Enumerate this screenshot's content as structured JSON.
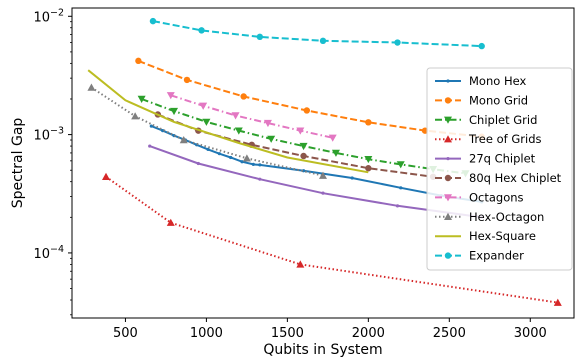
{
  "chart_data": {
    "type": "line",
    "title": "",
    "xlabel": "Qubits in System",
    "ylabel": "Spectral Gap",
    "xlim": [
      170,
      3270
    ],
    "ylim_log10": [
      -4.55,
      -1.93
    ],
    "yscale": "log",
    "x_ticks": [
      500,
      1000,
      1500,
      2000,
      2500,
      3000
    ],
    "x_tick_labels": [
      "500",
      "1000",
      "1500",
      "2000",
      "2500",
      "3000"
    ],
    "y_ticks": [
      0.0001,
      0.001,
      0.01
    ],
    "y_tick_labels": [
      {
        "base": "10",
        "exp": "−4"
      },
      {
        "base": "10",
        "exp": "−3"
      },
      {
        "base": "10",
        "exp": "−2"
      }
    ],
    "grid": false,
    "legend_position": "right",
    "series": [
      {
        "name": "Mono Hex",
        "color": "#1f77b4",
        "linestyle": "solid",
        "marker": "point",
        "x": [
          660,
          730,
          800,
          870,
          940,
          1010,
          1080,
          1150,
          1220,
          1290,
          1330,
          1600,
          1900,
          2200,
          2450,
          2700
        ],
        "y": [
          0.00118,
          0.00108,
          0.00098,
          0.0009,
          0.00082,
          0.00075,
          0.00069,
          0.00064,
          0.00059,
          0.00056,
          0.000555,
          0.000495,
          0.00043,
          0.000355,
          0.000305,
          0.00027
        ]
      },
      {
        "name": "Mono Grid",
        "color": "#ff7f0e",
        "linestyle": "dashed",
        "marker": "circle",
        "x": [
          580,
          880,
          1230,
          1620,
          2000,
          2350,
          2700
        ],
        "y": [
          0.0042,
          0.0029,
          0.0021,
          0.0016,
          0.00127,
          0.00108,
          0.00096
        ]
      },
      {
        "name": "Chiplet Grid",
        "color": "#2ca02c",
        "linestyle": "dashdot",
        "marker": "triangle-down",
        "x": [
          600,
          800,
          1000,
          1200,
          1400,
          1600,
          1800,
          2000,
          2200,
          2400,
          2600
        ],
        "y": [
          0.002,
          0.00158,
          0.00128,
          0.00108,
          0.00092,
          0.0008,
          0.0007,
          0.00062,
          0.00056,
          0.00051,
          0.00047
        ]
      },
      {
        "name": "Tree of Grids",
        "color": "#d62728",
        "linestyle": "dotted",
        "marker": "triangle-up",
        "x": [
          380,
          780,
          1580,
          3170
        ],
        "y": [
          0.00044,
          0.00018,
          8e-05,
          3.8e-05
        ]
      },
      {
        "name": "27q Chiplet",
        "color": "#9467bd",
        "linestyle": "solid",
        "marker": "point",
        "x": [
          650,
          950,
          1330,
          1720,
          2180,
          2700
        ],
        "y": [
          0.0008,
          0.00057,
          0.00042,
          0.00032,
          0.00025,
          0.0002
        ]
      },
      {
        "name": "80q Hex Chiplet",
        "color": "#8c564b",
        "linestyle": "dashed",
        "marker": "circle",
        "x": [
          700,
          950,
          1280,
          1600,
          2000,
          2400
        ],
        "y": [
          0.00148,
          0.00108,
          0.00082,
          0.00066,
          0.00052,
          0.00044
        ]
      },
      {
        "name": "Octagons",
        "color": "#e377c2",
        "linestyle": "dashdot",
        "marker": "triangle-down",
        "x": [
          780,
          980,
          1180,
          1380,
          1580,
          1780
        ],
        "y": [
          0.00215,
          0.00175,
          0.00145,
          0.00125,
          0.00108,
          0.00094
        ]
      },
      {
        "name": "Hex-Octagon",
        "color": "#7f7f7f",
        "linestyle": "dotted",
        "marker": "triangle-up",
        "x": [
          290,
          560,
          860,
          1250,
          1720
        ],
        "y": [
          0.0025,
          0.00143,
          0.0009,
          0.00063,
          0.00045
        ]
      },
      {
        "name": "Hex-Square",
        "color": "#bcbd22",
        "linestyle": "solid",
        "marker": "none",
        "x": [
          270,
          500,
          800,
          1200,
          1500,
          2000
        ],
        "y": [
          0.0035,
          0.00195,
          0.00128,
          0.00085,
          0.00064,
          0.00048
        ]
      },
      {
        "name": "Expander",
        "color": "#17becf",
        "linestyle": "dashed",
        "marker": "circle",
        "x": [
          670,
          970,
          1330,
          1720,
          2180,
          2700
        ],
        "y": [
          0.0091,
          0.0076,
          0.0067,
          0.0062,
          0.006,
          0.0056
        ]
      }
    ]
  }
}
